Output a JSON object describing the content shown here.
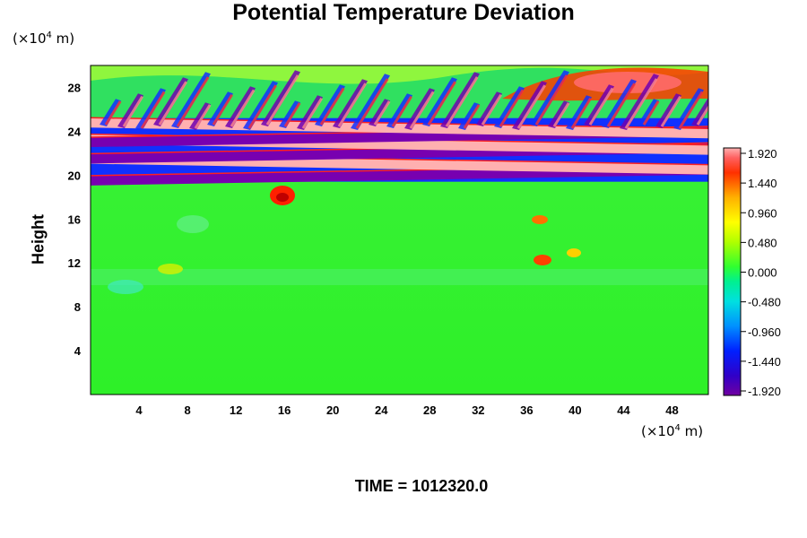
{
  "chart_data": {
    "type": "heatmap",
    "title": "Potential Temperature Deviation",
    "ylabel": "Height",
    "x_unit": {
      "prefix": "(×10",
      "exp": "4",
      "suffix": " m)"
    },
    "y_unit": {
      "prefix": "(×10",
      "exp": "4",
      "suffix": " m)"
    },
    "xlim": [
      0,
      51
    ],
    "ylim": [
      0,
      30
    ],
    "x_ticks": [
      4,
      8,
      12,
      16,
      20,
      24,
      28,
      32,
      36,
      40,
      44,
      48
    ],
    "y_ticks": [
      4,
      8,
      12,
      16,
      20,
      24,
      28
    ],
    "colorbar": {
      "ticks": [
        "1.920",
        "1.440",
        "0.960",
        "0.480",
        "0.000",
        "-0.480",
        "-0.960",
        "-1.440",
        "-1.920"
      ],
      "range": [
        -1.92,
        1.92
      ]
    },
    "field_description": {
      "background_value": 0.0,
      "bands": [
        {
          "y": 20.0,
          "value": -1.92
        },
        {
          "y": 21.0,
          "value": 1.92
        },
        {
          "y": 22.0,
          "value": -1.92
        },
        {
          "y": 22.8,
          "value": 1.92
        },
        {
          "y": 23.5,
          "value": -1.92
        },
        {
          "y": 24.3,
          "value": 1.92
        }
      ]
    },
    "footer": "TIME = 1012320.0"
  }
}
